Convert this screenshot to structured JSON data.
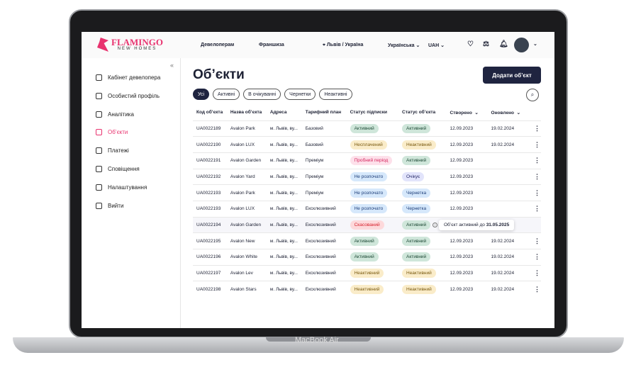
{
  "device": {
    "label": "MacBook Air"
  },
  "header": {
    "logo_main": "FLAMINGO",
    "logo_sub": "NEW HOMES",
    "nav": [
      "Девелоперам",
      "Франшиза"
    ],
    "location": "Львів / Україна",
    "language": "Українська",
    "currency": "UAH"
  },
  "sidebar": {
    "items": [
      {
        "label": "Кабінет девелопера",
        "icon": "home-icon"
      },
      {
        "label": "Особистий профіль",
        "icon": "user-icon"
      },
      {
        "label": "Аналітика",
        "icon": "chart-icon"
      },
      {
        "label": "Об’єкти",
        "icon": "building-icon",
        "active": true
      },
      {
        "label": "Платежі",
        "icon": "card-icon"
      },
      {
        "label": "Сповіщення",
        "icon": "bell-icon"
      },
      {
        "label": "Налаштування",
        "icon": "gear-icon"
      },
      {
        "label": "Вийти",
        "icon": "logout-icon"
      }
    ]
  },
  "main": {
    "title": "Об’єкти",
    "add_button": "Додати об’єкт",
    "filters": [
      "Усі",
      "Активні",
      "В очікуванні",
      "Чернетки",
      "Неактивні"
    ],
    "columns": [
      "Код об’єкта",
      "Назва об’єкта",
      "Адреса",
      "Тарифний план",
      "Статус підписки",
      "Статус об’єкта",
      "Створено",
      "Оновлено"
    ],
    "rows": [
      [
        "UA0022189",
        "Avalon Park",
        "м. Львів, ву...",
        "Базовий",
        "Активний",
        "green",
        "Активний",
        "green",
        "12.09.2023",
        "19.02.2024"
      ],
      [
        "UA0022190",
        "Avalon LUX",
        "м. Львів, ву...",
        "Базовий",
        "Несплачений",
        "yellow",
        "Неактивний",
        "yellow",
        "12.09.2023",
        "19.02.2024"
      ],
      [
        "UA0022191",
        "Avalon Garden",
        "м. Львів, ву...",
        "Преміум",
        "Пробний період",
        "pink",
        "Активний",
        "green",
        "12.09.2023",
        ""
      ],
      [
        "UA0022192",
        "Avalon Yard",
        "м. Львів, ву...",
        "Преміум",
        "Не розпочато",
        "blue",
        "Очікує",
        "violet",
        "12.09.2023",
        ""
      ],
      [
        "UA0022193",
        "Avalon Park",
        "м. Львів, ву...",
        "Преміум",
        "Не розпочато",
        "blue",
        "Чернетка",
        "blue",
        "12.09.2023",
        ""
      ],
      [
        "UA0022193",
        "Avalon LUX",
        "м. Львів, ву...",
        "Ексклюзивний",
        "Не розпочато",
        "blue",
        "Чернетка",
        "blue",
        "12.09.2023",
        ""
      ],
      [
        "UA0022194",
        "Avalon Garden",
        "м. Львів, ву...",
        "Ексклюзивний",
        "Скасований",
        "red",
        "Активний",
        "green",
        "",
        ""
      ],
      [
        "UA0022195",
        "Avalon New",
        "м. Львів, ву...",
        "Ексклюзивний",
        "Активний",
        "green",
        "Активний",
        "green",
        "12.09.2023",
        "19.02.2024"
      ],
      [
        "UA0022196",
        "Avalon White",
        "м. Львів, ву...",
        "Ексклюзивний",
        "Активний",
        "green",
        "Активний",
        "green",
        "12.09.2023",
        "19.02.2024"
      ],
      [
        "UA0022197",
        "Avalon Lev",
        "м. Львів, ву...",
        "Ексклюзивний",
        "Неактивний",
        "yellow",
        "Неактивний",
        "yellow",
        "12.09.2023",
        "19.02.2024"
      ],
      [
        "UA0022198",
        "Avalon Stars",
        "м. Львів, ву...",
        "Ексклюзивний",
        "Неактивний",
        "yellow",
        "Неактивний",
        "yellow",
        "12.09.2023",
        "19.02.2024"
      ]
    ],
    "tooltip": {
      "text": "Об’єкт активний до ",
      "date": "31.05.2025"
    }
  }
}
